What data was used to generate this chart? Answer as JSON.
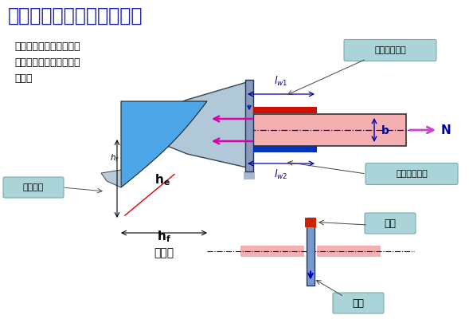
{
  "title": "三、焊缝的种类及表示方法",
  "bg_color": "#ffffff",
  "text_color": "#000000",
  "title_color": "#1a1aaa",
  "body_text": "每条角焊缝的尺寸都包括\n焊脚尺寸和焊缝长度两个\n部分。",
  "label_bg": "#aad4d8",
  "label_texts": [
    "胶背焊缝长度",
    "胶尖焊缝长度",
    "焊缝厚度",
    "胶背",
    "胔尖"
  ],
  "bottom_label": "普通式",
  "triangle_color": "#4da6e8",
  "wedge_color": "#b8ccd8",
  "beam_color": "#f4b8b8",
  "weld_red": "#cc1100",
  "weld_blue": "#0033cc",
  "arrow_magenta": "#dd00aa",
  "N_color": "#cc44cc",
  "dim_color": "#000099"
}
